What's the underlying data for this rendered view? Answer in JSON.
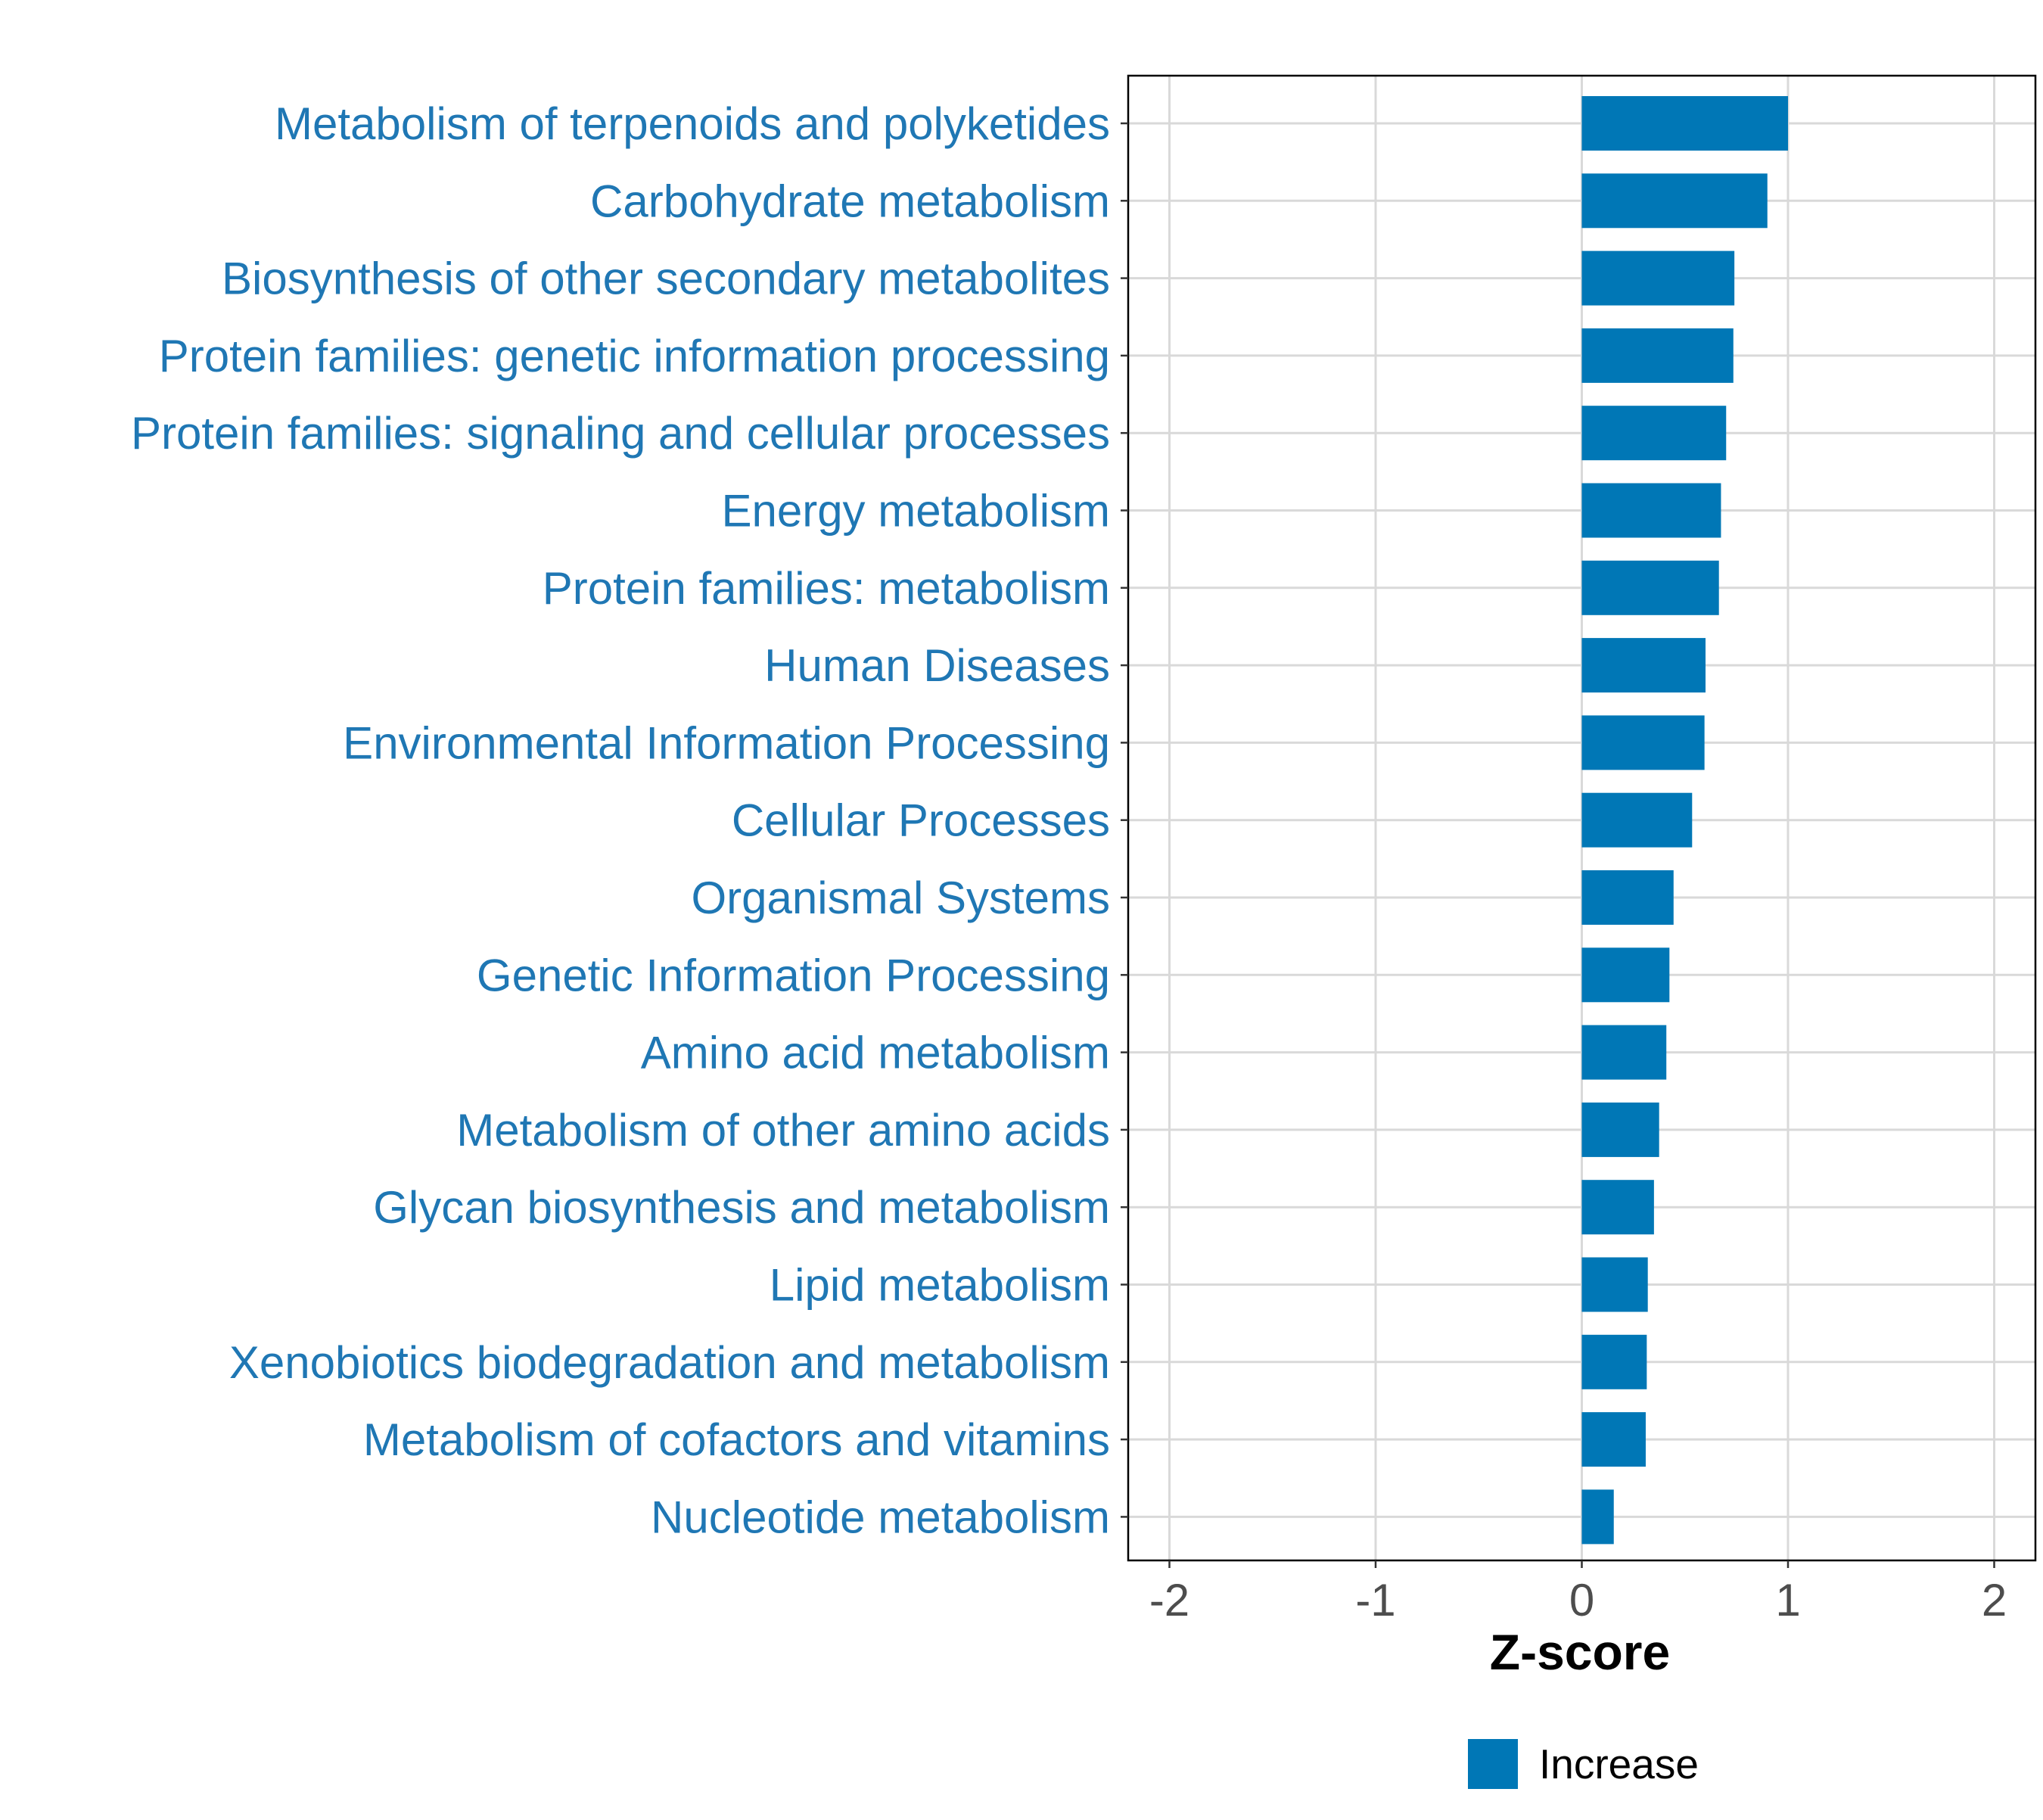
{
  "chart_data": {
    "type": "bar",
    "orientation": "horizontal",
    "title": "",
    "xlabel": "Z-score",
    "ylabel": "",
    "xlim": [
      -2.2,
      2.2
    ],
    "x_ticks": [
      -2,
      -1,
      0,
      1,
      2
    ],
    "x_tick_labels": [
      "-2",
      "-1",
      "0",
      "1",
      "2"
    ],
    "grid": true,
    "legend_position": "bottom",
    "categories": [
      "Metabolism of terpenoids and polyketides",
      "Carbohydrate metabolism",
      "Biosynthesis of other secondary metabolites",
      "Protein families: genetic information processing",
      "Protein families: signaling and cellular processes",
      "Energy metabolism",
      "Protein families: metabolism",
      "Human Diseases",
      "Environmental Information Processing",
      "Cellular Processes",
      "Organismal Systems",
      "Genetic Information Processing",
      "Amino acid metabolism",
      "Metabolism of other amino acids",
      "Glycan biosynthesis and metabolism",
      "Lipid metabolism",
      "Xenobiotics biodegradation and metabolism",
      "Metabolism of cofactors and vitamins",
      "Nucleotide metabolism"
    ],
    "series": [
      {
        "name": "Increase",
        "color": "#0077b6",
        "values": [
          1.0,
          0.9,
          0.74,
          0.735,
          0.7,
          0.675,
          0.665,
          0.6,
          0.595,
          0.535,
          0.445,
          0.425,
          0.41,
          0.375,
          0.35,
          0.32,
          0.315,
          0.31,
          0.155
        ]
      }
    ],
    "colors": {
      "label_color": "#1f77b4",
      "bar_color": "#0077b6",
      "grid_color": "#d9d9d9",
      "tick_label_color": "#4d4d4d",
      "axis_title_color": "#000000"
    }
  }
}
